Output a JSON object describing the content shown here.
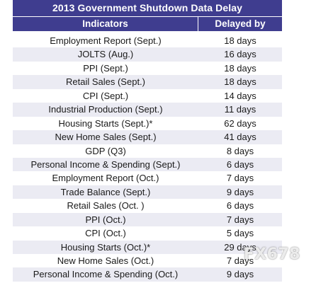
{
  "title": "2013 Government Shutdown Data Delay",
  "headers": {
    "indicators": "Indicators",
    "delayed_by": "Delayed by"
  },
  "rows": [
    {
      "indicator": "Employment Report (Sept.)",
      "delay": "18 days"
    },
    {
      "indicator": "JOLTS (Aug.)",
      "delay": "16 days"
    },
    {
      "indicator": "PPI  (Sept.)",
      "delay": "18 days"
    },
    {
      "indicator": "Retail Sales (Sept.)",
      "delay": "18 days"
    },
    {
      "indicator": "CPI (Sept.)",
      "delay": "14 days"
    },
    {
      "indicator": "Industrial Production (Sept.)",
      "delay": "11 days"
    },
    {
      "indicator": "Housing Starts (Sept.)*",
      "delay": "62 days"
    },
    {
      "indicator": "New Home Sales (Sept.)",
      "delay": "41 days"
    },
    {
      "indicator": "GDP (Q3)",
      "delay": "8 days"
    },
    {
      "indicator": "Personal Income & Spending (Sept.)",
      "delay": "6 days"
    },
    {
      "indicator": "Employment Report (Oct.)",
      "delay": "7 days"
    },
    {
      "indicator": "Trade Balance (Sept.)",
      "delay": "9 days"
    },
    {
      "indicator": "Retail Sales (Oct. )",
      "delay": "6 days"
    },
    {
      "indicator": "PPI (Oct.)",
      "delay": "7 days"
    },
    {
      "indicator": "CPI (Oct.)",
      "delay": "5 days"
    },
    {
      "indicator": "Housing Starts (Oct.)*",
      "delay": "29 days"
    },
    {
      "indicator": "New Home Sales (Oct.)",
      "delay": "7 days"
    },
    {
      "indicator": "Personal Income & Spending (Oct.)",
      "delay": "9 days"
    }
  ],
  "watermark": "FX678"
}
